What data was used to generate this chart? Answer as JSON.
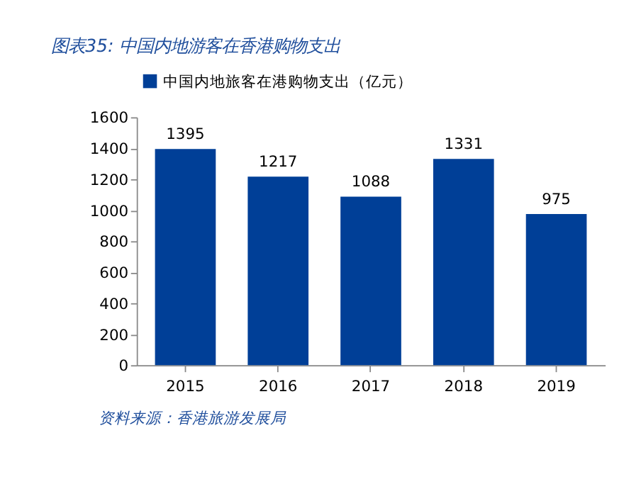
{
  "chart_data": {
    "type": "bar",
    "title": "图表35: 中国内地游客在香港购物支出",
    "categories": [
      "2015",
      "2016",
      "2017",
      "2018",
      "2019"
    ],
    "series": [
      {
        "name": "中国内地旅客在港购物支出（亿元）",
        "color": "#003f97",
        "values": [
          1395,
          1217,
          1088,
          1331,
          975
        ]
      }
    ],
    "ylim": [
      0,
      1600
    ],
    "yticks": [
      0,
      200,
      400,
      600,
      800,
      1000,
      1200,
      1400,
      1600
    ],
    "data_labels": true,
    "legend": "top",
    "grid": false,
    "annotations": [
      "资料来源：香港旅游发展局"
    ]
  }
}
